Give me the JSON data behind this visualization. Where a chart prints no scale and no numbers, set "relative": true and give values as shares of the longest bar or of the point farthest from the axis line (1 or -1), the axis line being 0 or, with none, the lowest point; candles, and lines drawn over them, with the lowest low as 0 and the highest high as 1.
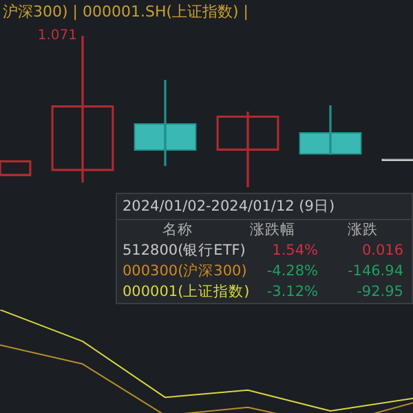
{
  "chart_data": [
    {
      "type": "candlestick",
      "title": "沪深300) | 000001.SH(上证指数) |",
      "relative": true,
      "categories": [
        null,
        null,
        null,
        null,
        null,
        null
      ],
      "ohlc": [
        [
          0.076,
          0.176,
          0.076,
          0.176
        ],
        [
          0.109,
          1,
          0.034,
          0.538
        ],
        [
          0.42,
          0.706,
          0.143,
          0.244
        ],
        [
          0.244,
          0.496,
          0,
          0.471
        ],
        [
          0.361,
          0.538,
          0.218,
          0.218
        ],
        [
          0.176,
          0.176,
          0.176,
          0.176
        ]
      ],
      "annotations": [
        "1.071"
      ]
    },
    {
      "type": "other",
      "title": "2024/01/02-2024/01/12 (9日)",
      "annotations": [
        "名称",
        "涨跌幅",
        "涨跌",
        "512800(银行ETF)",
        "1.54%",
        "0.016",
        "000300(沪深300)",
        "-4.28%",
        "-146.94",
        "000001(上证指数)",
        "-3.12%",
        "-92.95"
      ]
    },
    {
      "type": "line",
      "relative": true,
      "categories": [
        null,
        null,
        null,
        null,
        null,
        null
      ],
      "series": [
        {
          "color": "#d8d840",
          "values": [
            1,
            0.727,
            0.242,
            0.305,
            0.125,
            0.234
          ]
        },
        {
          "color": "#b8902a",
          "values": [
            0.695,
            0.531,
            0.086,
            0.156,
            0,
            0.195
          ]
        }
      ]
    }
  ]
}
